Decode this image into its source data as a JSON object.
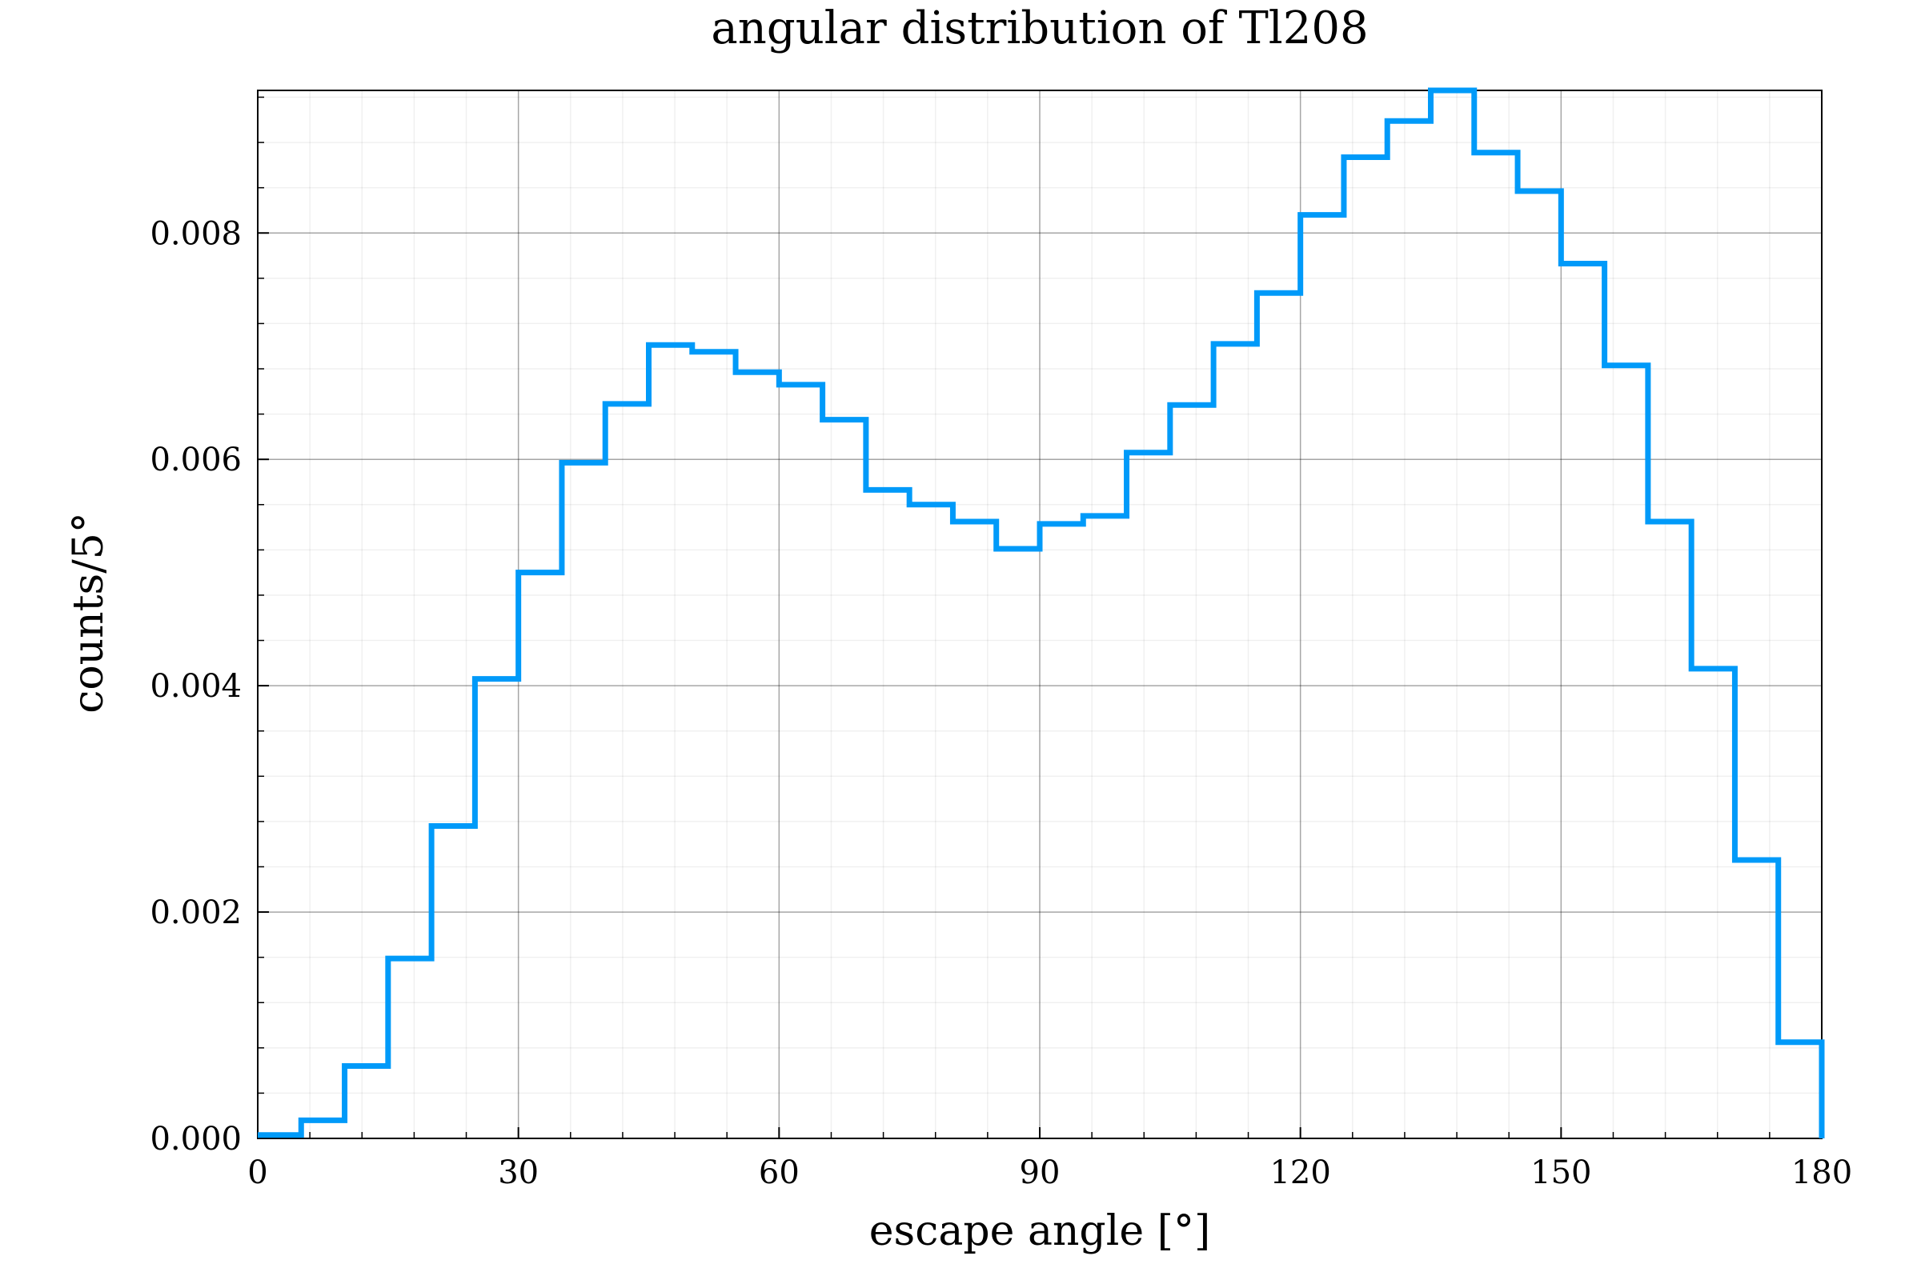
{
  "chart_data": {
    "type": "bar",
    "title": "angular distribution of Tl208",
    "xlabel": "escape angle [°]",
    "ylabel": "counts/5°",
    "xlim": [
      0,
      180
    ],
    "ylim": [
      0,
      0.00926
    ],
    "xticks": [
      0,
      30,
      60,
      90,
      120,
      150,
      180
    ],
    "xtick_labels": [
      "0",
      "30",
      "60",
      "90",
      "120",
      "150",
      "180"
    ],
    "yticks": [
      0,
      0.002,
      0.004,
      0.006,
      0.008
    ],
    "ytick_labels": [
      "0.000",
      "0.002",
      "0.004",
      "0.006",
      "0.008"
    ],
    "grid": true,
    "legend": false,
    "bin_width": 5,
    "bin_edges": [
      0,
      5,
      10,
      15,
      20,
      25,
      30,
      35,
      40,
      45,
      50,
      55,
      60,
      65,
      70,
      75,
      80,
      85,
      90,
      95,
      100,
      105,
      110,
      115,
      120,
      125,
      130,
      135,
      140,
      145,
      150,
      155,
      160,
      165,
      170,
      175,
      180
    ],
    "values": [
      3e-05,
      0.00016,
      0.00064,
      0.00159,
      0.00276,
      0.00406,
      0.005,
      0.00597,
      0.00649,
      0.00701,
      0.00695,
      0.00677,
      0.00666,
      0.00635,
      0.00573,
      0.0056,
      0.00545,
      0.00521,
      0.00543,
      0.0055,
      0.00606,
      0.00648,
      0.00702,
      0.00747,
      0.00816,
      0.00867,
      0.00899,
      0.00926,
      0.00871,
      0.00837,
      0.00773,
      0.00683,
      0.00545,
      0.00415,
      0.00246,
      0.00085
    ],
    "line_color": "#009AF9"
  }
}
